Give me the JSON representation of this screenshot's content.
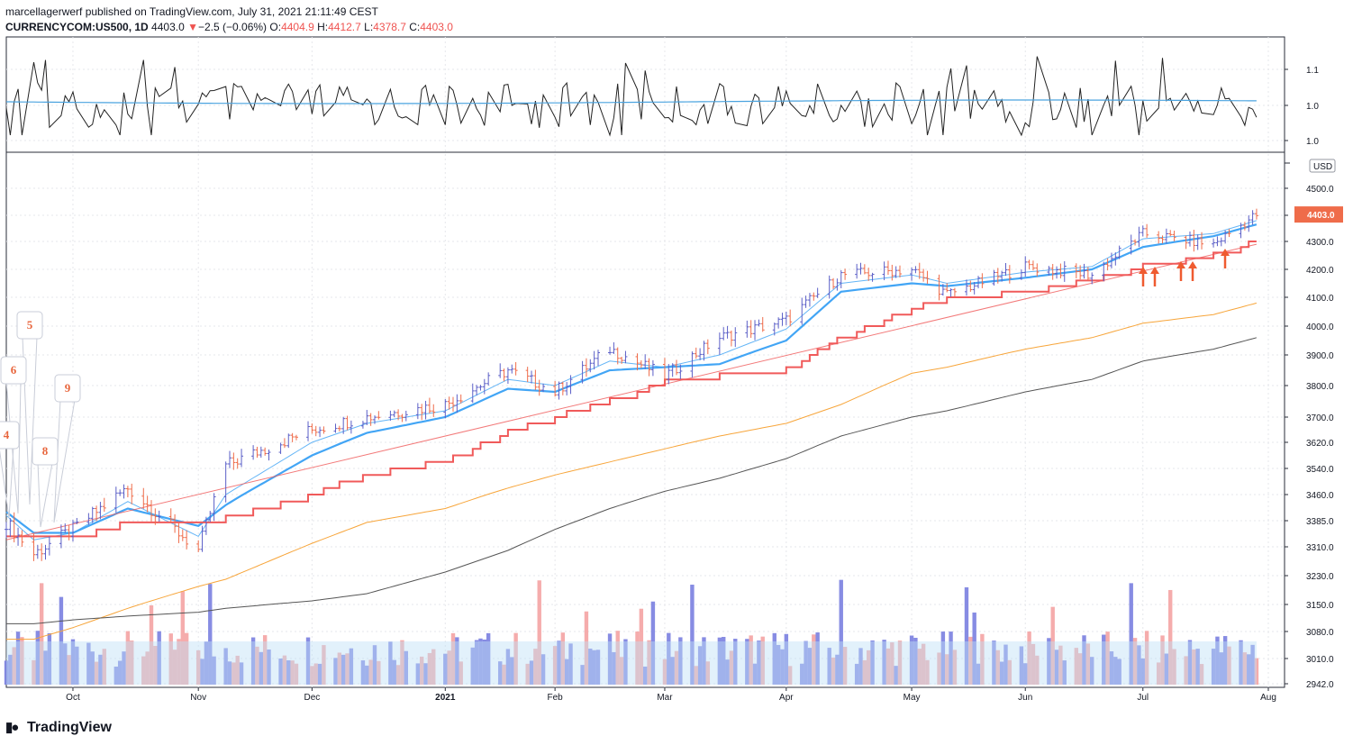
{
  "header": {
    "publisher": "marcellagerwerf published on TradingView.com, July 31, 2021 21:11:49 CEST",
    "symbol": "CURRENCYCOM:US500, 1D",
    "last": "4403.0",
    "change_arrow": "▼",
    "change": "−2.5 (−0.06%)",
    "o_label": "O:",
    "o_value": "4404.9",
    "h_label": "H:",
    "h_value": "4412.7",
    "l_label": "L:",
    "l_value": "4378.7",
    "c_label": "C:",
    "c_value": "4403.0"
  },
  "footer": {
    "brand": "TradingView",
    "logo_icon": "tradingview-logo-icon"
  },
  "colors": {
    "up": "#5b5fc7",
    "down": "#ef6c4a",
    "ema_fast": "#64b5f6",
    "ema_slow": "#42a5f5",
    "stop_line": "#f05a5a",
    "ma_orange": "#f7a53a",
    "ma_dark": "#555555",
    "vol_up": "#7a80e0",
    "vol_down": "#f4a3a3",
    "price_tag": "#ef6c4a",
    "arrow": "#ef5b30"
  },
  "chart_data": [
    {
      "type": "line",
      "name": "indicator-pane",
      "x": [
        "2020-09-14",
        "2020-10-01",
        "2020-11-02",
        "2020-12-01",
        "2021-01-04",
        "2021-02-01",
        "2021-03-01",
        "2021-04-01",
        "2021-05-03",
        "2021-06-01",
        "2021-07-01",
        "2021-07-30"
      ],
      "series": [
        {
          "values": [
            1.01,
            1.02,
            1.0,
            1.02,
            1.01,
            1.0,
            1.02,
            1.01,
            1.0,
            1.01,
            1.02,
            1.01
          ]
        },
        {
          "values": [
            1.01,
            1.01,
            1.01,
            1.01,
            1.01,
            1.01,
            1.01,
            1.01,
            1.01,
            1.01,
            1.01,
            1.01
          ]
        }
      ],
      "yticks": [
        "1.1",
        "1.0",
        "1.0"
      ],
      "ylim": [
        0.98,
        1.13
      ]
    },
    {
      "type": "bar",
      "name": "price-pane",
      "currency": "USD",
      "ylim": [
        2942,
        4560
      ],
      "yticks": [
        "4500.0",
        "4400.0",
        "4300.0",
        "4200.0",
        "4100.0",
        "4000.0",
        "3900.0",
        "3800.0",
        "3700.0",
        "3620.0",
        "3540.0",
        "3460.0",
        "3385.0",
        "3310.0",
        "3230.0",
        "3150.0",
        "3080.0",
        "3010.0",
        "2942.0"
      ],
      "last_price_label": "4403.0",
      "xticks": [
        "Oct",
        "Nov",
        "Dec",
        "2021",
        "Feb",
        "Mar",
        "Apr",
        "May",
        "Jun",
        "Jul",
        "Aug"
      ],
      "x": [
        "2020-09-14",
        "2020-09-21",
        "2020-10-01",
        "2020-10-15",
        "2020-11-02",
        "2020-11-09",
        "2020-12-01",
        "2020-12-15",
        "2021-01-04",
        "2021-01-20",
        "2021-02-01",
        "2021-02-15",
        "2021-03-01",
        "2021-03-15",
        "2021-04-01",
        "2021-04-15",
        "2021-05-03",
        "2021-05-12",
        "2021-06-01",
        "2021-06-18",
        "2021-07-01",
        "2021-07-19",
        "2021-07-30"
      ],
      "series": [
        {
          "name": "close",
          "values": [
            3380,
            3290,
            3360,
            3480,
            3300,
            3550,
            3660,
            3700,
            3740,
            3850,
            3780,
            3920,
            3830,
            3960,
            4020,
            4180,
            4200,
            4110,
            4210,
            4180,
            4330,
            4290,
            4403
          ]
        },
        {
          "name": "ema-fast",
          "values": [
            3400,
            3330,
            3350,
            3440,
            3340,
            3460,
            3620,
            3680,
            3720,
            3820,
            3800,
            3880,
            3860,
            3900,
            3990,
            4150,
            4180,
            4150,
            4190,
            4210,
            4310,
            4330,
            4380
          ]
        },
        {
          "name": "ema-slow",
          "values": [
            3410,
            3350,
            3350,
            3420,
            3370,
            3430,
            3580,
            3650,
            3700,
            3790,
            3780,
            3850,
            3860,
            3870,
            3950,
            4120,
            4150,
            4140,
            4170,
            4200,
            4280,
            4320,
            4365
          ]
        },
        {
          "name": "stop-line",
          "values": [
            3330,
            3330,
            3330,
            3380,
            3380,
            3390,
            3460,
            3520,
            3560,
            3650,
            3700,
            3750,
            3810,
            3830,
            3850,
            3960,
            4060,
            4090,
            4120,
            4160,
            4210,
            4250,
            4300
          ]
        },
        {
          "name": "ma-orange",
          "values": [
            3060,
            3060,
            3090,
            3140,
            3200,
            3220,
            3320,
            3380,
            3420,
            3480,
            3520,
            3560,
            3600,
            3640,
            3680,
            3740,
            3840,
            3860,
            3920,
            3960,
            4010,
            4040,
            4080
          ]
        },
        {
          "name": "ma-dark",
          "values": [
            3100,
            3100,
            3110,
            3120,
            3130,
            3140,
            3160,
            3180,
            3240,
            3300,
            3360,
            3420,
            3470,
            3510,
            3570,
            3640,
            3700,
            3720,
            3780,
            3820,
            3880,
            3920,
            3960
          ]
        }
      ],
      "annotations": [
        "5",
        "6",
        "9",
        "4",
        "8"
      ],
      "arrows": 6
    }
  ]
}
